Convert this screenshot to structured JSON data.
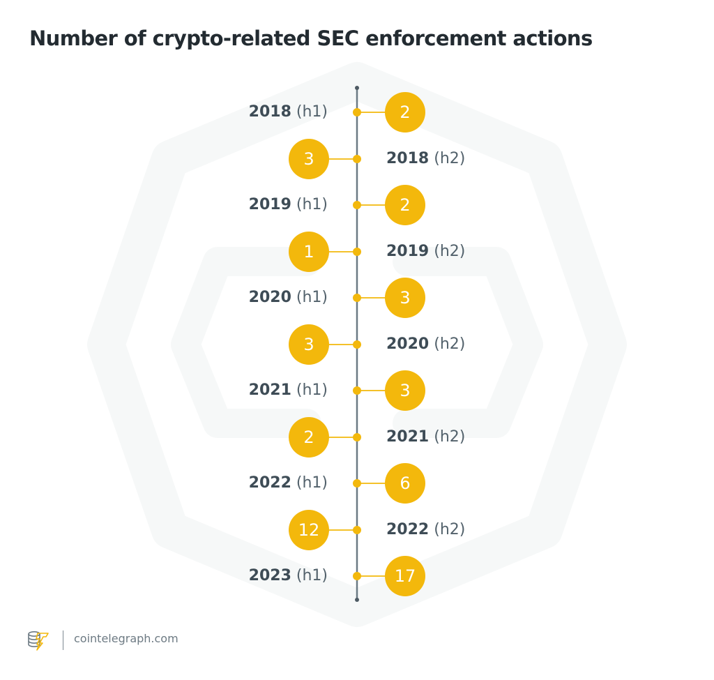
{
  "title": "Number of crypto-related SEC enforcement actions",
  "footer": {
    "logo_icon": "cointelegraph-logo-icon",
    "site": "cointelegraph.com"
  },
  "colors": {
    "accent": "#f3b80c",
    "axis": "#6b7a84",
    "text_dark": "#3e4c56",
    "background_shape": "#f6f8f8"
  },
  "items": [
    {
      "year": "2018",
      "half": "(h1)",
      "value": "2",
      "side": "right"
    },
    {
      "year": "2018",
      "half": "(h2)",
      "value": "3",
      "side": "left"
    },
    {
      "year": "2019",
      "half": "(h1)",
      "value": "2",
      "side": "right"
    },
    {
      "year": "2019",
      "half": "(h2)",
      "value": "1",
      "side": "left"
    },
    {
      "year": "2020",
      "half": "(h1)",
      "value": "3",
      "side": "right"
    },
    {
      "year": "2020",
      "half": "(h2)",
      "value": "3",
      "side": "left"
    },
    {
      "year": "2021",
      "half": "(h1)",
      "value": "3",
      "side": "right"
    },
    {
      "year": "2021",
      "half": "(h2)",
      "value": "2",
      "side": "left"
    },
    {
      "year": "2022",
      "half": "(h1)",
      "value": "6",
      "side": "right"
    },
    {
      "year": "2022",
      "half": "(h2)",
      "value": "12",
      "side": "left"
    },
    {
      "year": "2023",
      "half": "(h1)",
      "value": "17",
      "side": "right"
    }
  ],
  "chart_data": {
    "type": "timeline",
    "title": "Number of crypto-related SEC enforcement actions",
    "categories": [
      "2018 (h1)",
      "2018 (h2)",
      "2019 (h1)",
      "2019 (h2)",
      "2020 (h1)",
      "2020 (h2)",
      "2021 (h1)",
      "2021 (h2)",
      "2022 (h1)",
      "2022 (h2)",
      "2023 (h1)"
    ],
    "values": [
      2,
      3,
      2,
      1,
      3,
      3,
      3,
      2,
      6,
      12,
      17
    ],
    "xlabel": "",
    "ylabel": "",
    "orientation": "vertical",
    "grid": false,
    "legend": null,
    "source": "cointelegraph.com"
  }
}
